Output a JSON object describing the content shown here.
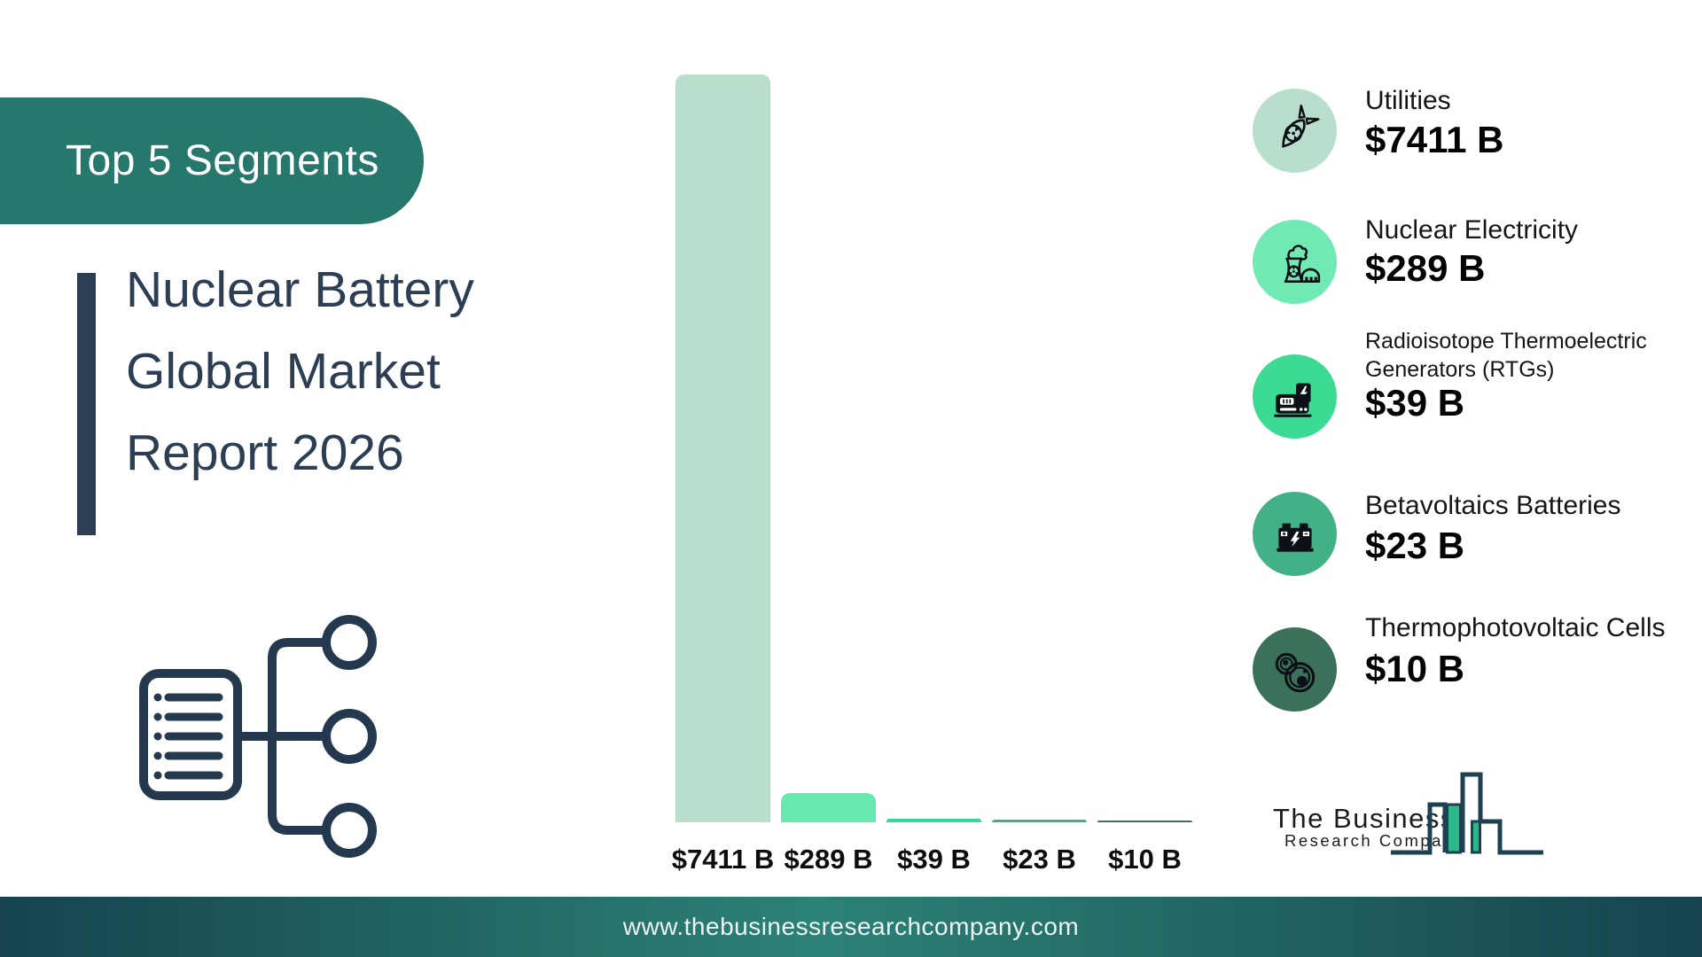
{
  "banner": {
    "label": "Top 5 Segments"
  },
  "title": {
    "lines": [
      "Nuclear Battery",
      "Global Market",
      "Report 2026"
    ]
  },
  "chart_data": {
    "type": "bar",
    "title": "Nuclear Battery Global Market Report 2026 — Top 5 Segments",
    "categories": [
      "Utilities",
      "Nuclear Electricity",
      "Radioisotope Thermoelectric Generators (RTGs)",
      "Betavoltaics Batteries",
      "Thermophotovoltaic Cells"
    ],
    "values": [
      7411,
      289,
      39,
      23,
      10
    ],
    "value_labels": [
      "$7411 B",
      "$289 B",
      "$39 B",
      "$23 B",
      "$10 B"
    ],
    "bar_colors": [
      "#b9decb",
      "#68e8b1",
      "#35d79c",
      "#3fb286",
      "#3b7157"
    ],
    "ylim": [
      0,
      7411
    ],
    "grid": false,
    "legend_position": "right"
  },
  "legend": {
    "items": [
      {
        "label": "Utilities",
        "value": "$7411 B",
        "color": "#b9decb",
        "icon": "nuclear-bomb-icon"
      },
      {
        "label": "Nuclear Electricity",
        "value": "$289 B",
        "color": "#70e9b4",
        "icon": "nuclear-plant-icon"
      },
      {
        "label": "Radioisotope Thermoelectric Generators (RTGs)",
        "value": "$39 B",
        "color": "#3bdb94",
        "icon": "rtg-generator-icon"
      },
      {
        "label": "Betavoltaics Batteries",
        "value": "$23 B",
        "color": "#42b286",
        "icon": "car-battery-icon"
      },
      {
        "label": "Thermophotovoltaic Cells",
        "value": "$10 B",
        "color": "#3b7158",
        "icon": "cells-icon"
      }
    ]
  },
  "logo": {
    "name_line1": "The Business",
    "name_line2": "Research Company"
  },
  "footer": {
    "url": "www.thebusinessresearchcompany.com"
  },
  "colors": {
    "banner_teal": "#26786d",
    "navy": "#2b3e54",
    "footer_dark": "#16434e",
    "footer_teal": "#2c8277",
    "logo_green": "#2cb98a"
  }
}
